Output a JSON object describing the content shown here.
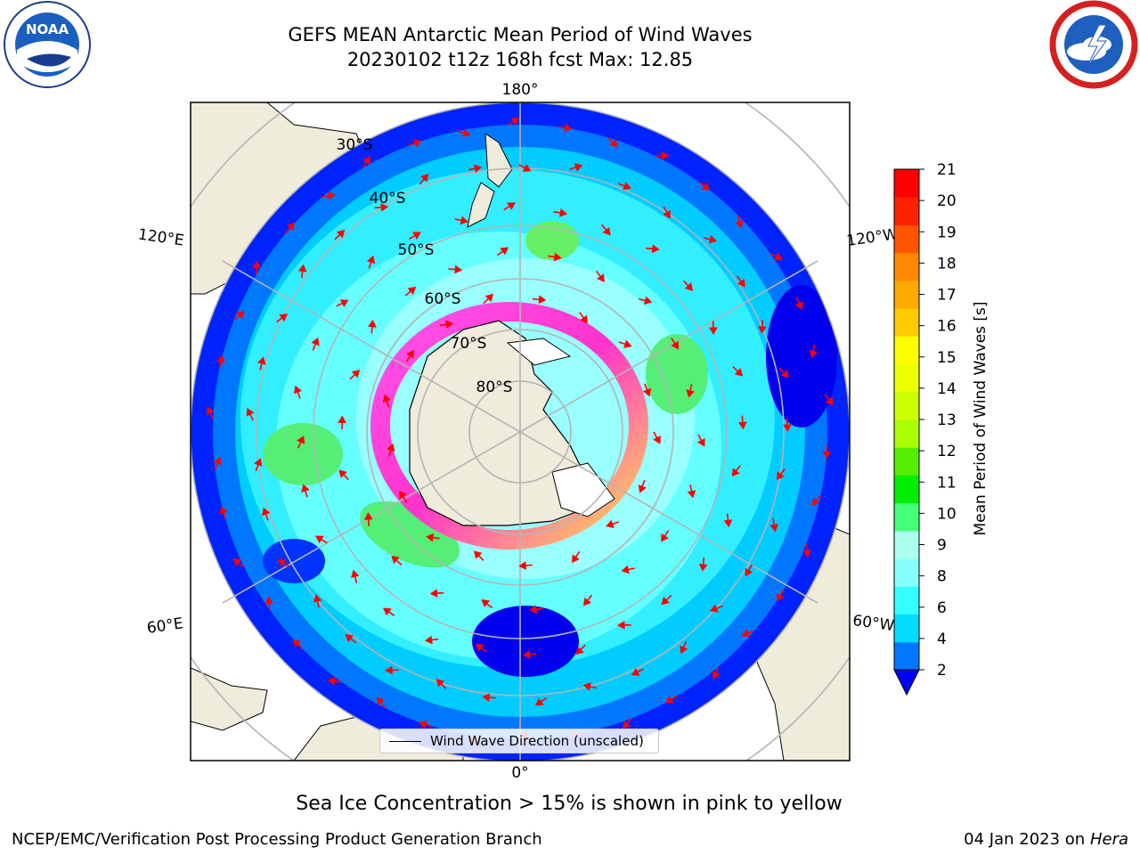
{
  "title": {
    "line1": "GEFS MEAN Antarctic Mean Period of Wind Waves",
    "line2": "20230102 t12z 168h fcst   Max: 12.85"
  },
  "logos": {
    "left": {
      "icon": "noaa-logo",
      "text": "NOAA"
    },
    "right": {
      "icon": "nws-logo"
    }
  },
  "map": {
    "projection": "south-polar-stereographic",
    "longitude_labels": [
      "180°",
      "120°E",
      "120°W",
      "60°E",
      "60°W",
      "0°"
    ],
    "latitude_labels": [
      "30°S",
      "40°S",
      "50°S",
      "60°S",
      "70°S",
      "80°S"
    ],
    "colors": {
      "land": "#efecdc",
      "sea_ice": "#ff44ee",
      "arrow": "#ff0000",
      "grid": "#b4b4b4"
    }
  },
  "legend": {
    "label": "Wind Wave Direction (unscaled)"
  },
  "colorbar": {
    "label": "Mean Period of Wind Waves [s]",
    "ticks": [
      "2",
      "4",
      "6",
      "8",
      "9",
      "10",
      "11",
      "12",
      "13",
      "14",
      "15",
      "16",
      "17",
      "18",
      "19",
      "20",
      "21"
    ],
    "colors": [
      "#0077ff",
      "#00ddff",
      "#33ffff",
      "#88ffff",
      "#aaffee",
      "#44ff77",
      "#00ee00",
      "#55ee00",
      "#aaff00",
      "#ccff00",
      "#eeff00",
      "#ffff00",
      "#ffcc00",
      "#ffaa00",
      "#ff8800",
      "#ff5500",
      "#ff2200",
      "#ff0000"
    ],
    "under_color": "#0000ff"
  },
  "note": "Sea Ice Concentration > 15% is shown in pink to yellow",
  "footer": {
    "left": "NCEP/EMC/Verification Post Processing Product Generation Branch",
    "right_date": "04 Jan 2023 on ",
    "right_host": "Hera"
  }
}
